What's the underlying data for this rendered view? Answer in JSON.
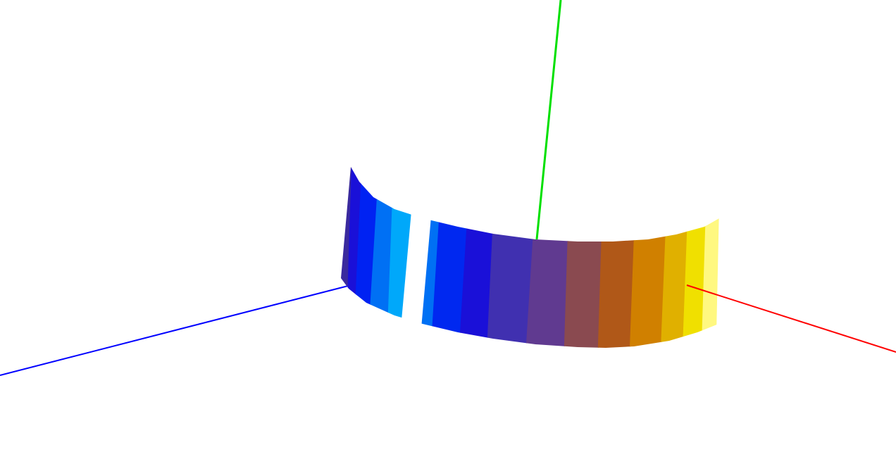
{
  "scene": {
    "background": "#ffffff",
    "axes": {
      "x_axis_color": "#ff0000",
      "y_axis_color": "#00e000",
      "z_axis_color": "#0000ff"
    },
    "surface": {
      "shape": "cylindrical band with gap",
      "colormap": [
        "#3a2a9e",
        "#1a10d8",
        "#0022f2",
        "#0070f4",
        "#00a8fa",
        "#00a8fa",
        "#0070f4",
        "#0028f0",
        "#1a10d8",
        "#4030b0",
        "#603a90",
        "#8a4a50",
        "#b05818",
        "#d08000",
        "#e0b000",
        "#f0e000",
        "#fff880"
      ]
    }
  }
}
